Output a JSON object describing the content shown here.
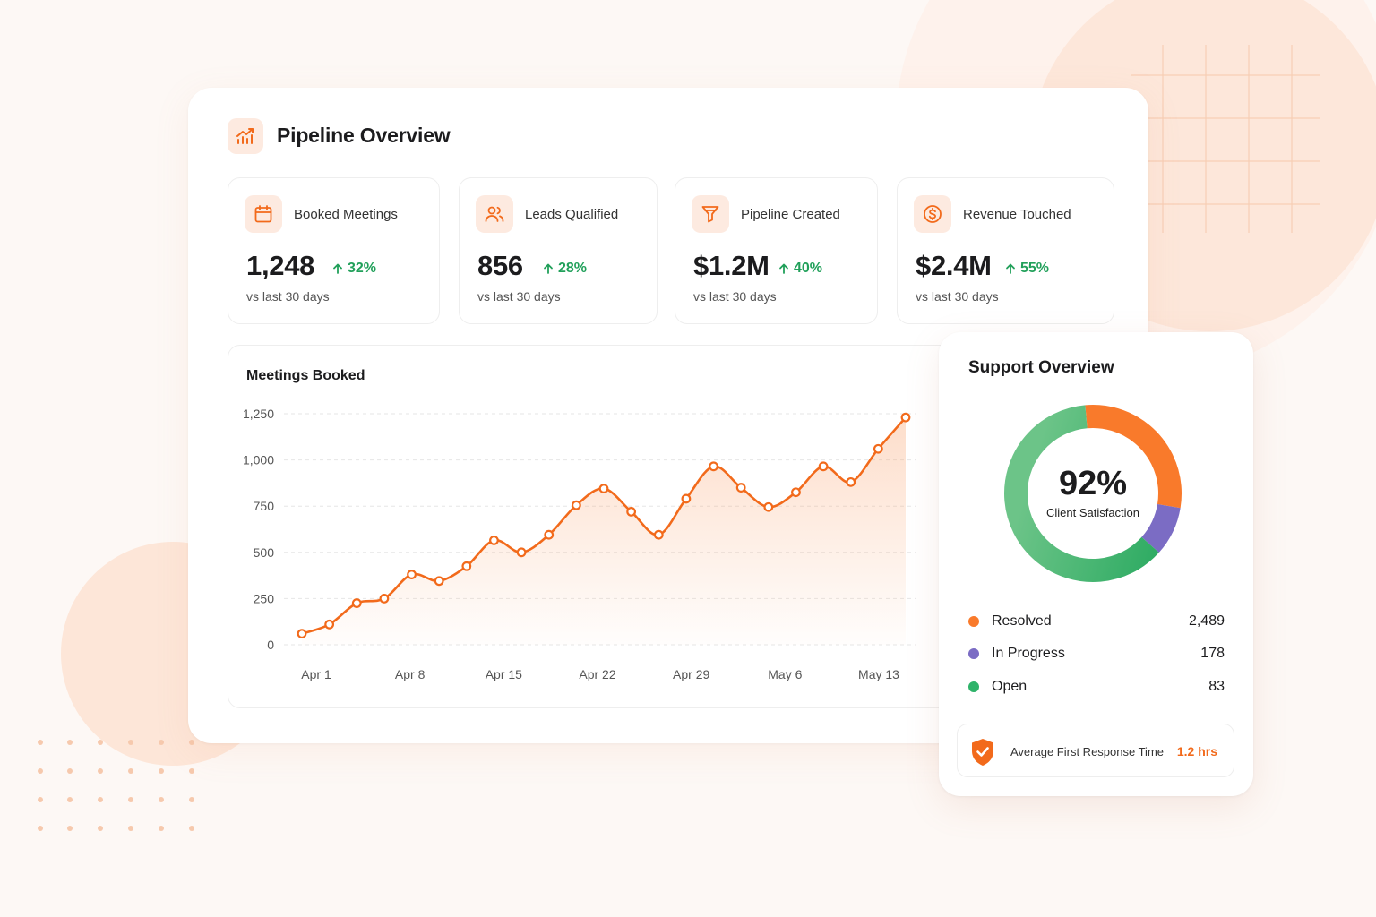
{
  "colors": {
    "accent": "#f26a1b",
    "positive": "#21a05a",
    "resolved": "#f97a2b",
    "in_progress": "#7b6cc4",
    "open": "#2fb36a"
  },
  "header": {
    "title": "Pipeline Overview",
    "icon": "chart-trend-icon"
  },
  "kpis": [
    {
      "label": "Booked Meetings",
      "value": "1,248",
      "change": "32%",
      "sub": "vs last 30 days",
      "icon": "calendar-icon"
    },
    {
      "label": "Leads Qualified",
      "value": "856",
      "change": "28%",
      "sub": "vs last 30 days",
      "icon": "users-icon"
    },
    {
      "label": "Pipeline Created",
      "value": "$1.2M",
      "change": "40%",
      "sub": "vs last 30 days",
      "icon": "funnel-icon"
    },
    {
      "label": "Revenue Touched",
      "value": "$2.4M",
      "change": "55%",
      "sub": "vs last 30 days",
      "icon": "dollar-icon"
    }
  ],
  "chart_data": {
    "type": "area",
    "title": "Meetings Booked",
    "xlabel": "",
    "ylabel": "",
    "ylim": [
      0,
      1250
    ],
    "yticks": [
      0,
      250,
      500,
      750,
      1000,
      1250
    ],
    "ytick_labels": [
      "0",
      "250",
      "500",
      "750",
      "1,000",
      "1,250"
    ],
    "xtick_labels": [
      "Apr 1",
      "Apr 8",
      "Apr 15",
      "Apr 22",
      "Apr 29",
      "May 6",
      "May 13"
    ],
    "grid": true,
    "series": [
      {
        "values": [
          60,
          110,
          225,
          250,
          380,
          345,
          425,
          565,
          500,
          595,
          755,
          845,
          720,
          595,
          790,
          965,
          850,
          745,
          825,
          965,
          880,
          1060,
          1230
        ]
      }
    ]
  },
  "support": {
    "title": "Support Overview",
    "donut_value": "92%",
    "donut_label": "Client Satisfaction",
    "segments": [
      {
        "name": "Resolved",
        "value": "2,489",
        "count": 2489,
        "color": "#f97a2b"
      },
      {
        "name": "In Progress",
        "value": "178",
        "count": 178,
        "color": "#7b6cc4"
      },
      {
        "name": "Open",
        "value": "83",
        "count": 83,
        "color": "#2fb36a"
      }
    ],
    "response_label": "Average First Response Time",
    "response_value": "1.2 hrs",
    "response_icon": "shield-check-icon"
  }
}
